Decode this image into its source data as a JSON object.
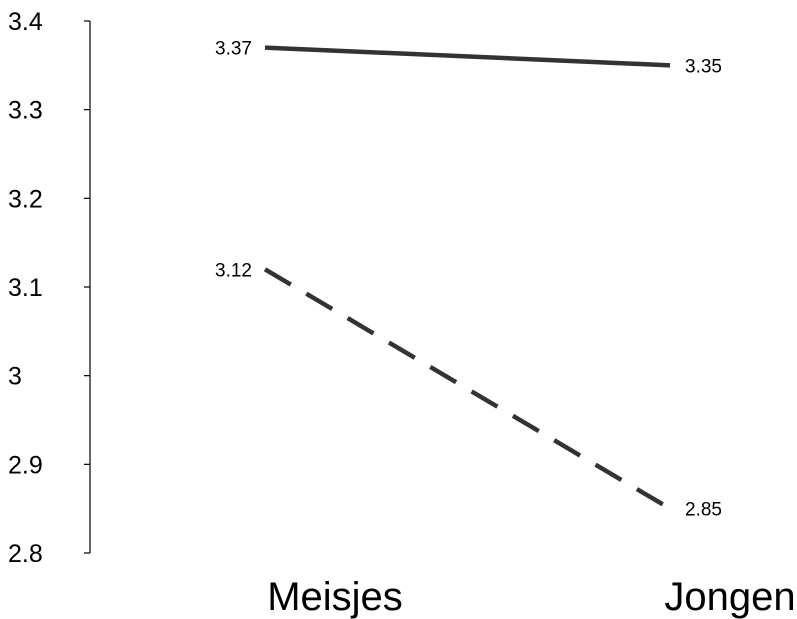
{
  "chart_data": {
    "type": "line",
    "categories": [
      "Meisjes",
      "Jongens"
    ],
    "ylim": [
      2.8,
      3.4
    ],
    "y_ticks": [
      "2.8",
      "2.9",
      "3",
      "3.1",
      "3.2",
      "3.3",
      "3.4"
    ],
    "grid": false,
    "legend": "none",
    "series": [
      {
        "values": [
          3.37,
          3.35
        ],
        "labels": [
          "3.37",
          "3.35"
        ],
        "style": "solid",
        "color": "#333333"
      },
      {
        "values": [
          3.12,
          2.85
        ],
        "labels": [
          "3.12",
          "2.85"
        ],
        "style": "dashed",
        "color": "#333333"
      }
    ]
  }
}
